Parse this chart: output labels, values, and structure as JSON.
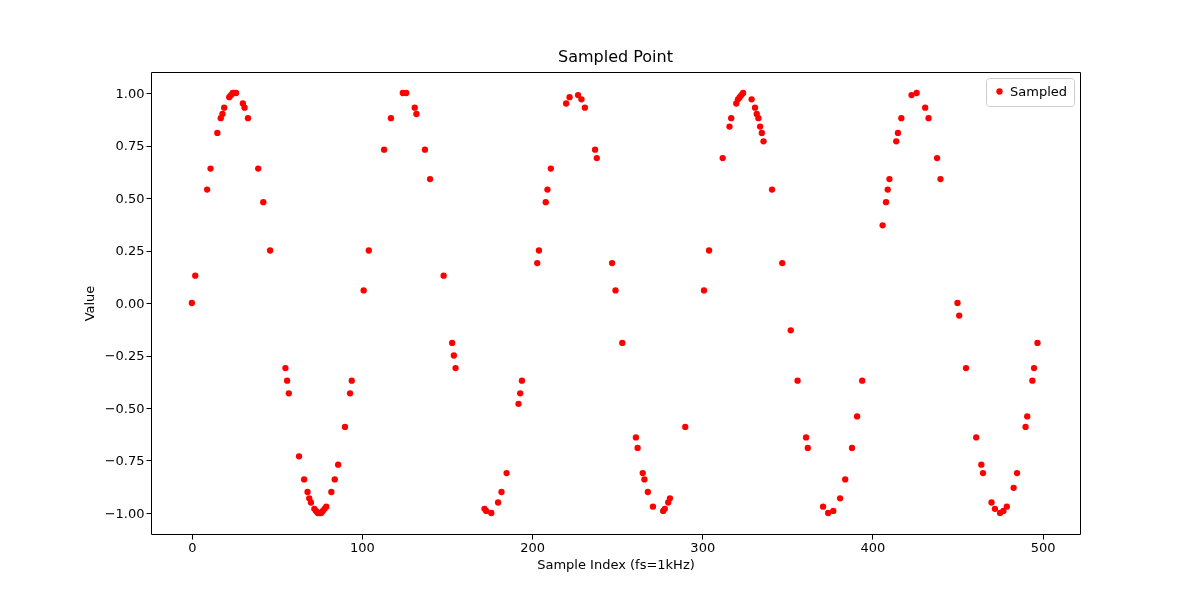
{
  "chart_data": {
    "type": "scatter",
    "title": "Sampled Point",
    "xlabel": "Sample Index (fs=1kHz)",
    "ylabel": "Value",
    "x": [
      0,
      2,
      9,
      11,
      15,
      17,
      18,
      19,
      22,
      23,
      24,
      25,
      26,
      30,
      31,
      33,
      39,
      42,
      46,
      55,
      56,
      57,
      63,
      66,
      68,
      69,
      70,
      72,
      73,
      74,
      75,
      76,
      77,
      78,
      79,
      82,
      84,
      86,
      90,
      93,
      94,
      101,
      104,
      113,
      117,
      124,
      126,
      131,
      132,
      137,
      140,
      148,
      153,
      154,
      155,
      172,
      173,
      176,
      180,
      182,
      185,
      192,
      193,
      194,
      203,
      204,
      208,
      209,
      211,
      220,
      222,
      227,
      229,
      231,
      237,
      238,
      247,
      249,
      253,
      261,
      262,
      265,
      266,
      268,
      271,
      277,
      278,
      280,
      281,
      290,
      301,
      304,
      312,
      316,
      317,
      320,
      321,
      322,
      323,
      324,
      329,
      331,
      332,
      333,
      334,
      335,
      336,
      341,
      347,
      352,
      356,
      361,
      362,
      371,
      374,
      377,
      381,
      384,
      388,
      391,
      394,
      406,
      408,
      409,
      410,
      414,
      415,
      417,
      423,
      426,
      431,
      433,
      438,
      440,
      450,
      451,
      455,
      461,
      464,
      465,
      470,
      472,
      475,
      477,
      479,
      483,
      485,
      490,
      491,
      494,
      495,
      497
    ],
    "series": [
      {
        "name": "Sampled",
        "color": "#ff0000",
        "values": [
          0,
          0.13,
          0.54,
          0.64,
          0.81,
          0.88,
          0.9,
          0.93,
          0.98,
          0.99,
          1.0,
          1.0,
          1.0,
          0.95,
          0.93,
          0.88,
          0.64,
          0.48,
          0.25,
          -0.31,
          -0.37,
          -0.43,
          -0.73,
          -0.84,
          -0.9,
          -0.93,
          -0.95,
          -0.98,
          -0.99,
          -1.0,
          -1.0,
          -1.0,
          -0.99,
          -0.98,
          -0.97,
          -0.9,
          -0.84,
          -0.77,
          -0.59,
          -0.43,
          -0.37,
          0.06,
          0.25,
          0.73,
          0.88,
          1.0,
          1.0,
          0.93,
          0.9,
          0.73,
          0.59,
          0.13,
          -0.19,
          -0.25,
          -0.31,
          -0.98,
          -0.99,
          -1.0,
          -0.95,
          -0.9,
          -0.81,
          -0.48,
          -0.43,
          -0.37,
          0.19,
          0.25,
          0.48,
          0.54,
          0.64,
          0.95,
          0.98,
          0.99,
          0.97,
          0.93,
          0.73,
          0.69,
          0.19,
          0.06,
          -0.19,
          -0.64,
          -0.69,
          -0.81,
          -0.84,
          -0.9,
          -0.97,
          -0.99,
          -0.98,
          -0.95,
          -0.93,
          -0.59,
          0.06,
          0.25,
          0.69,
          0.84,
          0.88,
          0.95,
          0.97,
          0.98,
          0.99,
          1.0,
          0.97,
          0.93,
          0.9,
          0.88,
          0.84,
          0.81,
          0.77,
          0.54,
          0.19,
          -0.13,
          -0.37,
          -0.64,
          -0.69,
          -0.97,
          -1.0,
          -0.99,
          -0.93,
          -0.84,
          -0.69,
          -0.54,
          -0.37,
          0.37,
          0.48,
          0.54,
          0.59,
          0.77,
          0.81,
          0.88,
          0.99,
          1.0,
          0.93,
          0.88,
          0.69,
          0.59,
          0,
          -0.06,
          -0.31,
          -0.64,
          -0.77,
          -0.81,
          -0.95,
          -0.98,
          -1.0,
          -0.99,
          -0.97,
          -0.88,
          -0.81,
          -0.59,
          -0.54,
          -0.37,
          -0.31,
          -0.19
        ]
      }
    ],
    "xlim": [
      -24,
      522
    ],
    "ylim": [
      -1.1,
      1.1
    ],
    "xticks": [
      0,
      100,
      200,
      300,
      400,
      500
    ],
    "yticks": [
      {
        "value": -1,
        "label": "−1.00"
      },
      {
        "value": -0.75,
        "label": "−0.75"
      },
      {
        "value": -0.5,
        "label": "−0.50"
      },
      {
        "value": -0.25,
        "label": "−0.25"
      },
      {
        "value": 0,
        "label": "0.00"
      },
      {
        "value": 0.25,
        "label": "0.25"
      },
      {
        "value": 0.5,
        "label": "0.50"
      },
      {
        "value": 0.75,
        "label": "0.75"
      },
      {
        "value": 1,
        "label": "1.00"
      }
    ],
    "marker": "circle",
    "legend": "top right",
    "grid": false
  }
}
